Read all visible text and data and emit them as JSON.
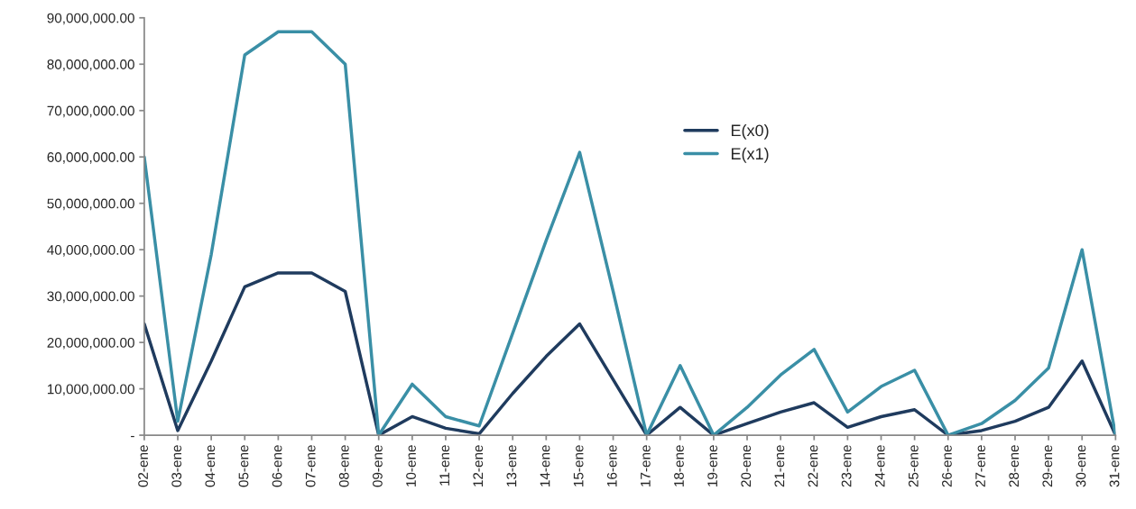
{
  "chart_data": {
    "type": "line",
    "categories": [
      "02-ene",
      "03-ene",
      "04-ene",
      "05-ene",
      "06-ene",
      "07-ene",
      "08-ene",
      "09-ene",
      "10-ene",
      "11-ene",
      "12-ene",
      "13-ene",
      "14-ene",
      "15-ene",
      "16-ene",
      "17-ene",
      "18-ene",
      "19-ene",
      "20-ene",
      "21-ene",
      "22-ene",
      "23-ene",
      "24-ene",
      "25-ene",
      "26-ene",
      "27-ene",
      "28-ene",
      "29-ene",
      "30-ene",
      "31-ene"
    ],
    "series": [
      {
        "name": "E(x0)",
        "color": "#1f3b5e",
        "values": [
          24000000,
          1000000,
          16000000,
          32000000,
          35000000,
          35000000,
          31000000,
          0,
          4000000,
          1500000,
          300000,
          9000000,
          17000000,
          24000000,
          12000000,
          0,
          6000000,
          0,
          2500000,
          5000000,
          7000000,
          1700000,
          4000000,
          5500000,
          0,
          1000000,
          3000000,
          6000000,
          16000000,
          0
        ]
      },
      {
        "name": "E(x1)",
        "color": "#3a8fa6",
        "values": [
          60000000,
          3000000,
          39000000,
          82000000,
          87000000,
          87000000,
          80000000,
          0,
          11000000,
          4000000,
          2000000,
          22000000,
          42000000,
          61000000,
          31000000,
          0,
          15000000,
          0,
          6000000,
          13000000,
          18500000,
          5000000,
          10500000,
          14000000,
          0,
          2500000,
          7500000,
          14500000,
          40000000,
          0
        ]
      }
    ],
    "ylim": [
      0,
      90000000
    ],
    "yticks": [
      {
        "value": 0,
        "label": "-"
      },
      {
        "value": 10000000,
        "label": "10,000,000.00"
      },
      {
        "value": 20000000,
        "label": "20,000,000.00"
      },
      {
        "value": 30000000,
        "label": "30,000,000.00"
      },
      {
        "value": 40000000,
        "label": "40,000,000.00"
      },
      {
        "value": 50000000,
        "label": "50,000,000.00"
      },
      {
        "value": 60000000,
        "label": "60,000,000.00"
      },
      {
        "value": 70000000,
        "label": "70,000,000.00"
      },
      {
        "value": 80000000,
        "label": "80,000,000.00"
      },
      {
        "value": 90000000,
        "label": "90,000,000.00"
      }
    ],
    "grid": false,
    "legend": "top",
    "line_style": "solid",
    "marker": "none"
  }
}
